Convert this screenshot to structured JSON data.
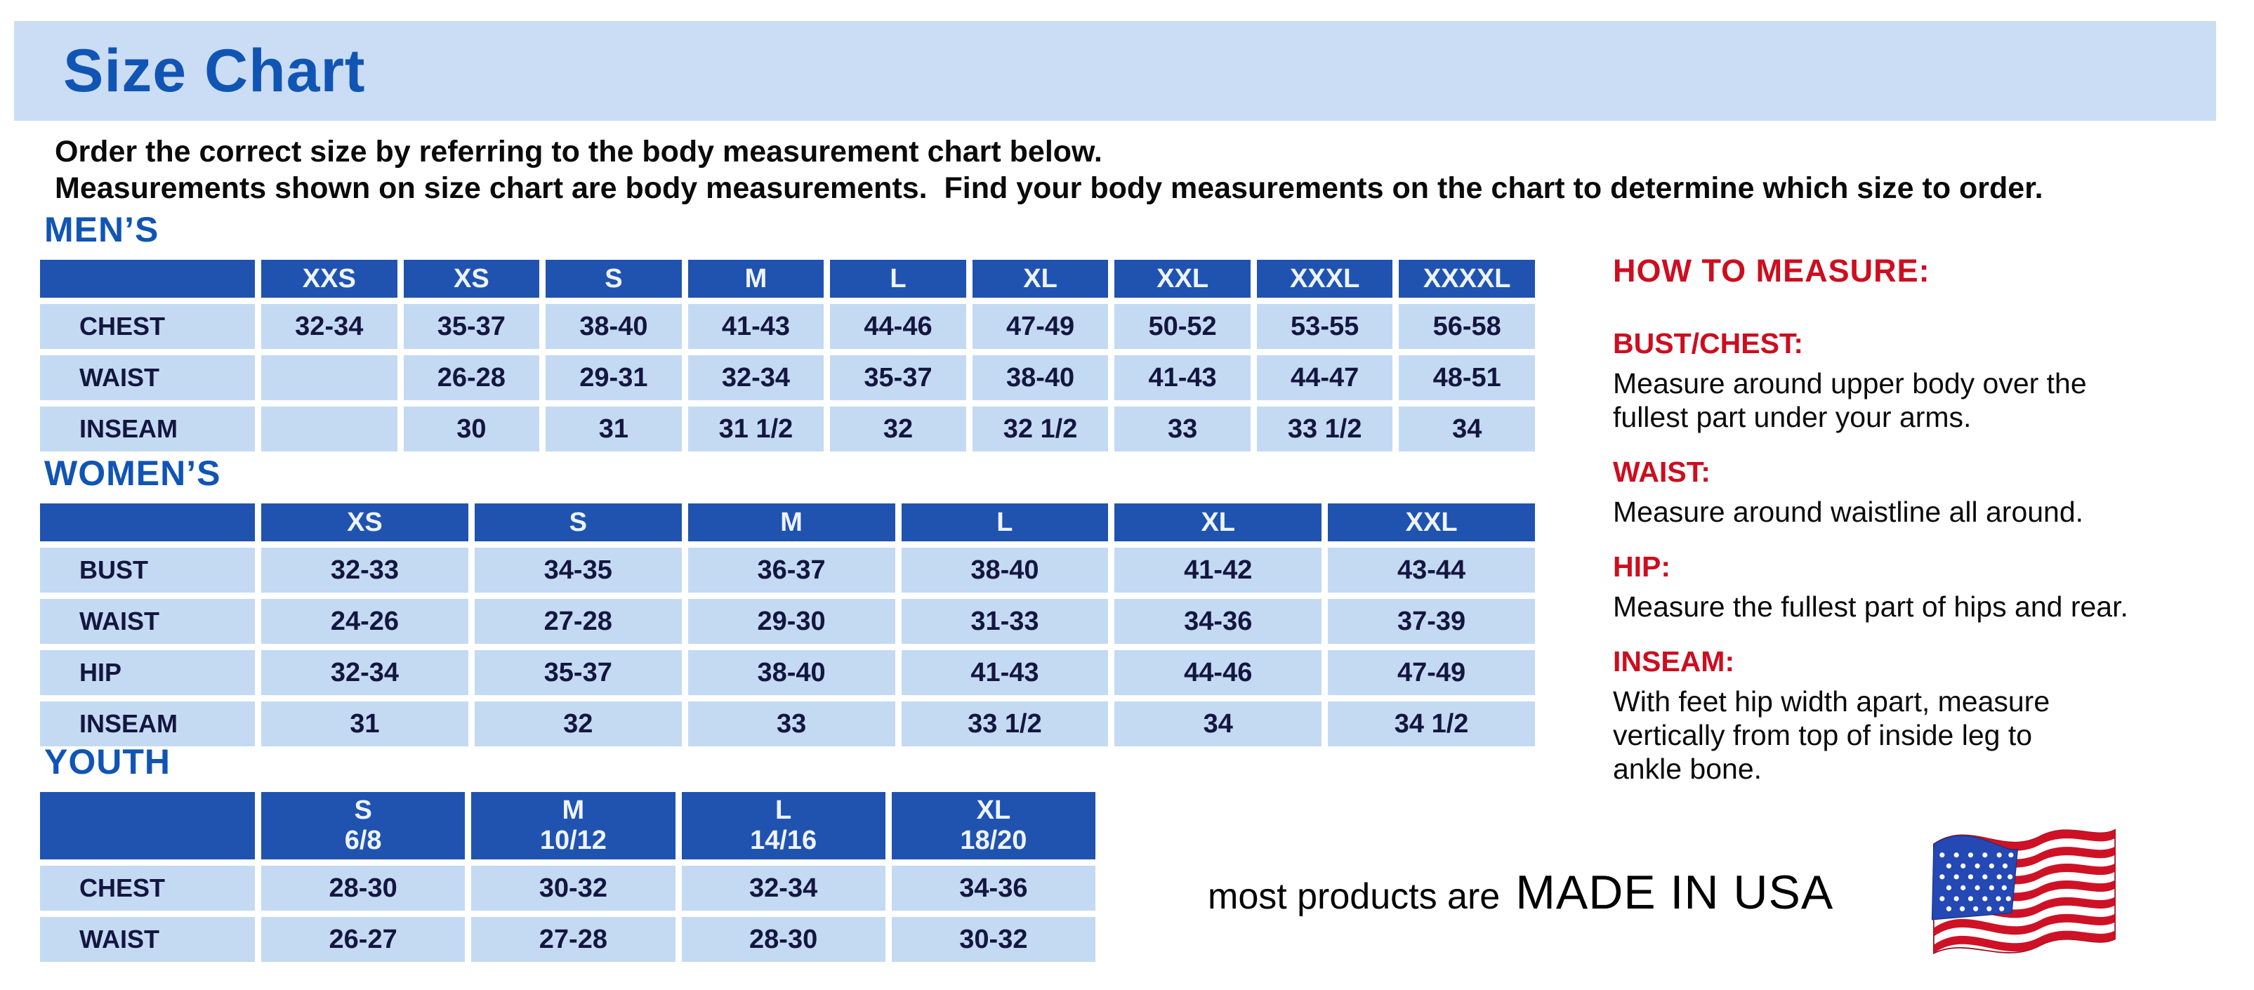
{
  "title": "Size Chart",
  "intro": {
    "line1": "Order the correct size by referring to the body measurement chart below.",
    "line2": "Measurements shown on size chart are body measurements.  Find your body measurements on the chart to determine which size to order."
  },
  "sections": {
    "mens": {
      "heading": "MEN’S",
      "table": {
        "sizes": [
          "XXS",
          "XS",
          "S",
          "M",
          "L",
          "XL",
          "XXL",
          "XXXL",
          "XXXXL"
        ],
        "rows": [
          {
            "label": "CHEST",
            "values": [
              "32-34",
              "35-37",
              "38-40",
              "41-43",
              "44-46",
              "47-49",
              "50-52",
              "53-55",
              "56-58"
            ]
          },
          {
            "label": "WAIST",
            "values": [
              "",
              "26-28",
              "29-31",
              "32-34",
              "35-37",
              "38-40",
              "41-43",
              "44-47",
              "48-51"
            ]
          },
          {
            "label": "INSEAM",
            "values": [
              "",
              "30",
              "31",
              "31 1/2",
              "32",
              "32 1/2",
              "33",
              "33 1/2",
              "34"
            ]
          }
        ]
      }
    },
    "womens": {
      "heading": "WOMEN’S",
      "table": {
        "sizes": [
          "XS",
          "S",
          "M",
          "L",
          "XL",
          "XXL"
        ],
        "rows": [
          {
            "label": "BUST",
            "values": [
              "32-33",
              "34-35",
              "36-37",
              "38-40",
              "41-42",
              "43-44"
            ]
          },
          {
            "label": "WAIST",
            "values": [
              "24-26",
              "27-28",
              "29-30",
              "31-33",
              "34-36",
              "37-39"
            ]
          },
          {
            "label": "HIP",
            "values": [
              "32-34",
              "35-37",
              "38-40",
              "41-43",
              "44-46",
              "47-49"
            ]
          },
          {
            "label": "INSEAM",
            "values": [
              "31",
              "32",
              "33",
              "33 1/2",
              "34",
              "34 1/2"
            ]
          }
        ]
      }
    },
    "youth": {
      "heading": "YOUTH",
      "table": {
        "sizes": [
          "S\n6/8",
          "M\n10/12",
          "L\n14/16",
          "XL\n18/20"
        ],
        "rows": [
          {
            "label": "CHEST",
            "values": [
              "28-30",
              "30-32",
              "32-34",
              "34-36"
            ]
          },
          {
            "label": "WAIST",
            "values": [
              "26-27",
              "27-28",
              "28-30",
              "30-32"
            ]
          }
        ]
      }
    }
  },
  "how_to_measure": {
    "heading": "HOW TO MEASURE:",
    "items": [
      {
        "label": "BUST/CHEST:",
        "text": "Measure around upper body over the\nfullest part under your arms."
      },
      {
        "label": "WAIST:",
        "text": "Measure around waistline all around."
      },
      {
        "label": "HIP:",
        "text": "Measure the fullest part of hips and rear."
      },
      {
        "label": "INSEAM:",
        "text": "With feet hip width apart, measure\nvertically from top of inside leg to\nankle bone."
      }
    ]
  },
  "footer": {
    "prefix": "most products are",
    "emphasis": "MADE IN USA",
    "flag_icon": "usa-flag-icon"
  },
  "colors": {
    "band_bg": "#cbddf4",
    "title_blue": "#1155b4",
    "table_header_bg": "#2053b0",
    "table_cell_bg": "#c4daf3",
    "cell_text": "#141640",
    "red": "#cc0e1f",
    "flag_red": "#cf1126",
    "flag_blue": "#2448b4"
  }
}
